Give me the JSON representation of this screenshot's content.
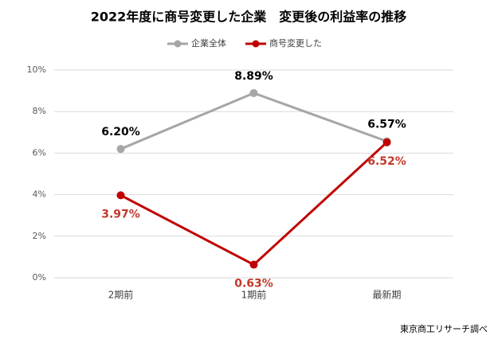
{
  "chart_data": {
    "type": "line",
    "title": "2022年度に商号変更した企業　変更後の利益率の推移",
    "categories": [
      "2期前",
      "1期前",
      "最新期"
    ],
    "series": [
      {
        "name": "企業全体",
        "color": "#a6a6a6",
        "values": [
          6.2,
          8.89,
          6.57
        ],
        "value_labels": [
          "6.20%",
          "8.89%",
          "6.57%"
        ],
        "label_color": "#000000",
        "label_position": "above"
      },
      {
        "name": "商号変更した",
        "color": "#c00000",
        "values": [
          3.97,
          0.63,
          6.52
        ],
        "value_labels": [
          "3.97%",
          "0.63%",
          "6.52%"
        ],
        "label_color": "#c0392b",
        "label_position": "below"
      }
    ],
    "ylim": [
      0,
      10
    ],
    "yticks": [
      {
        "value": 0,
        "label": "0%"
      },
      {
        "value": 2,
        "label": "2%"
      },
      {
        "value": 4,
        "label": "4%"
      },
      {
        "value": 6,
        "label": "6%"
      },
      {
        "value": 8,
        "label": "8%"
      },
      {
        "value": 10,
        "label": "10%"
      }
    ],
    "grid": true,
    "legend": "top",
    "source": "東京商工リサーチ調べ"
  }
}
